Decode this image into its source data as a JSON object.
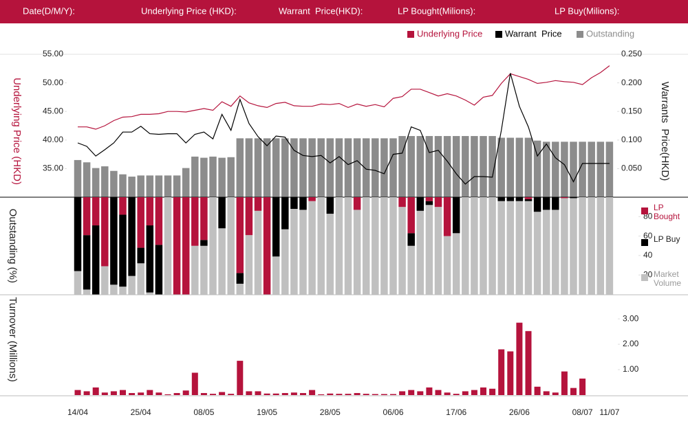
{
  "header": {
    "fields": [
      "Date(D/M/Y):",
      "Underlying Price (HKD):",
      "Warrant  Price(HKD):",
      "LP Bought(Milions):",
      "LP Buy(Milions):"
    ]
  },
  "chart_data": [
    {
      "type": "combo",
      "ylabel": "Underlying Price (HKD)",
      "y2label": "Warrants  Price(HKD)",
      "ylim": [
        30,
        55
      ],
      "yticks": [
        {
          "value": 35,
          "label": "35.00"
        },
        {
          "value": 40,
          "label": "40.00"
        },
        {
          "value": 45,
          "label": "45.00"
        },
        {
          "value": 50,
          "label": "50.00"
        },
        {
          "value": 55,
          "label": "55.00"
        }
      ],
      "y2lim": [
        0,
        0.25
      ],
      "y2ticks": [
        {
          "value": 0.05,
          "label": "0.050"
        },
        {
          "value": 0.1,
          "label": "0.100"
        },
        {
          "value": 0.15,
          "label": "0.150"
        },
        {
          "value": 0.2,
          "label": "0.200"
        },
        {
          "value": 0.25,
          "label": "0.250"
        }
      ],
      "series": [
        {
          "name": "Underlying Price",
          "color": "#b5133c",
          "kind": "line",
          "axis": "y",
          "values": [
            42.3,
            42.3,
            41.9,
            42.5,
            43.4,
            44.0,
            44.1,
            44.5,
            44.5,
            44.6,
            45.0,
            45.0,
            44.9,
            45.2,
            45.5,
            45.2,
            46.7,
            45.9,
            47.7,
            46.5,
            46.0,
            45.7,
            46.4,
            46.6,
            46.0,
            45.9,
            45.9,
            46.3,
            46.2,
            46.4,
            45.7,
            46.3,
            45.9,
            46.2,
            45.8,
            47.3,
            47.6,
            48.9,
            48.9,
            48.3,
            47.7,
            48.1,
            47.7,
            47.0,
            46.1,
            47.5,
            47.8,
            49.9,
            51.6,
            51.1,
            50.6,
            49.9,
            50.1,
            50.4,
            50.2,
            50.1,
            49.7,
            50.9,
            51.8,
            53.0
          ]
        },
        {
          "name": "Warrant  Price",
          "color": "#000000",
          "kind": "line",
          "axis": "y2",
          "values": [
            0.095,
            0.089,
            0.072,
            0.083,
            0.095,
            0.114,
            0.114,
            0.124,
            0.111,
            0.11,
            0.111,
            0.111,
            0.095,
            0.11,
            0.114,
            0.102,
            0.145,
            0.117,
            0.171,
            0.129,
            0.106,
            0.09,
            0.107,
            0.105,
            0.082,
            0.073,
            0.071,
            0.073,
            0.06,
            0.071,
            0.057,
            0.064,
            0.049,
            0.047,
            0.041,
            0.075,
            0.077,
            0.123,
            0.117,
            0.078,
            0.082,
            0.063,
            0.041,
            0.023,
            0.036,
            0.036,
            0.035,
            0.117,
            0.217,
            0.159,
            0.123,
            0.072,
            0.093,
            0.069,
            0.057,
            0.027,
            0.059,
            0.059,
            0.059,
            0.059
          ]
        },
        {
          "name": "Outstanding",
          "color": "#8c8c8c",
          "kind": "bar",
          "axis": "y2",
          "values": [
            0.065,
            0.061,
            0.051,
            0.054,
            0.046,
            0.04,
            0.036,
            0.038,
            0.038,
            0.038,
            0.038,
            0.038,
            0.051,
            0.071,
            0.069,
            0.071,
            0.069,
            0.07,
            0.103,
            0.103,
            0.103,
            0.103,
            0.103,
            0.103,
            0.103,
            0.103,
            0.103,
            0.103,
            0.103,
            0.103,
            0.103,
            0.103,
            0.103,
            0.103,
            0.103,
            0.103,
            0.107,
            0.107,
            0.107,
            0.107,
            0.107,
            0.107,
            0.107,
            0.107,
            0.107,
            0.107,
            0.107,
            0.104,
            0.104,
            0.104,
            0.104,
            0.099,
            0.097,
            0.097,
            0.097,
            0.097,
            0.097,
            0.097,
            0.097,
            0.097
          ]
        }
      ]
    },
    {
      "type": "stacked_bar",
      "ylabel": "Outstanding (%)",
      "ylim": [
        0,
        100
      ],
      "yticks": [
        20,
        40,
        60,
        80
      ],
      "series": [
        {
          "name": "Market Volume",
          "color": "#c0c0c0",
          "values": [
            24,
            5,
            0,
            29,
            10,
            8,
            19,
            32,
            2,
            0,
            100,
            0,
            0,
            50,
            50,
            100,
            68,
            100,
            11,
            61,
            86,
            0,
            39,
            67,
            88,
            87,
            96,
            100,
            83,
            100,
            100,
            87,
            100,
            100,
            100,
            100,
            90,
            50,
            86,
            92,
            90,
            60,
            63,
            100,
            100,
            100,
            100,
            96,
            96,
            96,
            96,
            85,
            87,
            87,
            99,
            99,
            100,
            100,
            100,
            100
          ]
        },
        {
          "name": "LP Buy",
          "color": "#000000",
          "values": [
            76,
            56,
            71,
            0,
            90,
            74,
            81,
            16,
            69,
            51,
            0,
            0,
            0,
            0,
            6,
            0,
            32,
            0,
            11,
            0,
            0,
            0,
            61,
            33,
            12,
            13,
            0,
            0,
            17,
            0,
            0,
            0,
            0,
            0,
            0,
            0,
            0,
            13,
            14,
            4,
            0,
            0,
            37,
            0,
            0,
            0,
            0,
            4,
            4,
            4,
            2,
            15,
            13,
            13,
            0,
            1,
            0,
            0,
            0,
            0
          ]
        },
        {
          "name": "LP Bought",
          "color": "#b5133c",
          "values": [
            0,
            39,
            29,
            71,
            0,
            18,
            0,
            52,
            29,
            49,
            0,
            100,
            100,
            50,
            44,
            0,
            0,
            0,
            78,
            39,
            14,
            100,
            0,
            0,
            0,
            0,
            4,
            0,
            0,
            0,
            0,
            13,
            0,
            0,
            0,
            0,
            10,
            37,
            0,
            4,
            10,
            40,
            0,
            0,
            0,
            0,
            0,
            0,
            0,
            0,
            2,
            0,
            0,
            0,
            1,
            0,
            0,
            0,
            0,
            0
          ]
        }
      ]
    },
    {
      "type": "bar",
      "ylabel": "Turnover (Millions)",
      "ylim": [
        0,
        3.3
      ],
      "yticks": [
        {
          "value": 1,
          "label": "1.00"
        },
        {
          "value": 2,
          "label": "2.00"
        },
        {
          "value": 3,
          "label": "3.00"
        }
      ],
      "color": "#b5133c",
      "categories": [
        "14/04",
        null,
        null,
        null,
        null,
        null,
        null,
        "25/04",
        null,
        null,
        null,
        null,
        null,
        null,
        "08/05",
        null,
        null,
        null,
        null,
        null,
        null,
        "19/05",
        null,
        null,
        null,
        null,
        null,
        null,
        "28/05",
        null,
        null,
        null,
        null,
        null,
        null,
        "06/06",
        null,
        null,
        null,
        null,
        null,
        null,
        "17/06",
        null,
        null,
        null,
        null,
        null,
        null,
        "26/06",
        null,
        null,
        null,
        null,
        null,
        null,
        "08/07",
        null,
        null,
        "11/07"
      ],
      "values": [
        0.2,
        0.15,
        0.3,
        0.1,
        0.15,
        0.2,
        0.08,
        0.1,
        0.2,
        0.1,
        0.03,
        0.08,
        0.18,
        0.88,
        0.08,
        0.05,
        0.12,
        0.05,
        1.35,
        0.15,
        0.15,
        0.06,
        0.06,
        0.08,
        0.1,
        0.08,
        0.2,
        0.03,
        0.06,
        0.05,
        0.05,
        0.08,
        0.05,
        0.04,
        0.04,
        0.04,
        0.15,
        0.2,
        0.15,
        0.3,
        0.2,
        0.1,
        0.05,
        0.15,
        0.2,
        0.3,
        0.25,
        1.8,
        1.72,
        2.85,
        2.52,
        0.33,
        0.15,
        0.1,
        0.93,
        0.28,
        0.65,
        null,
        null,
        null
      ]
    }
  ]
}
